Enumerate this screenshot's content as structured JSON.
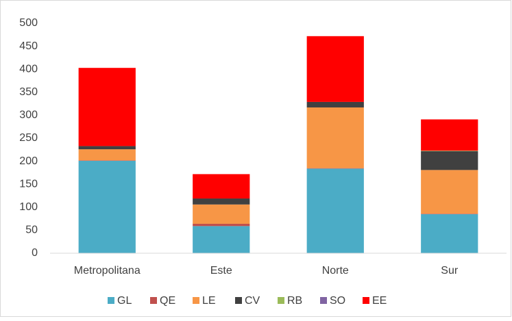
{
  "chart_data": {
    "type": "stacked_bar",
    "categories": [
      "Metropolitana",
      "Este",
      "Norte",
      "Sur"
    ],
    "series": [
      {
        "name": "GL",
        "color": "#4bacc6",
        "values": [
          201,
          59,
          184,
          85
        ]
      },
      {
        "name": "QE",
        "color": "#c0504d",
        "values": [
          1,
          5,
          1,
          1
        ]
      },
      {
        "name": "LE",
        "color": "#f79646",
        "values": [
          24,
          42,
          132,
          95
        ]
      },
      {
        "name": "CV",
        "color": "#404040",
        "values": [
          7,
          13,
          12,
          41
        ]
      },
      {
        "name": "RB",
        "color": "#9bbb59",
        "values": [
          0,
          0,
          0,
          1
        ]
      },
      {
        "name": "SO",
        "color": "#8064a2",
        "values": [
          0,
          0,
          0,
          0
        ]
      },
      {
        "name": "EE",
        "color": "#ff0000",
        "values": [
          170,
          53,
          143,
          68
        ]
      }
    ],
    "ylim": [
      0,
      500
    ],
    "yticks": [
      0,
      50,
      100,
      150,
      200,
      250,
      300,
      350,
      400,
      450,
      500
    ],
    "grid": false,
    "legend": "bottom"
  }
}
